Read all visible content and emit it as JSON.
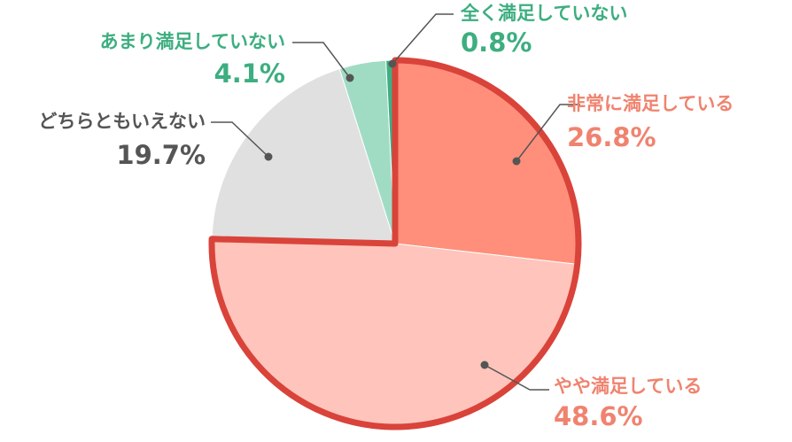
{
  "chart_data": {
    "type": "pie",
    "categories": [
      "非常に満足している",
      "やや満足している",
      "どちらともいえない",
      "あまり満足していない",
      "全く満足していない"
    ],
    "values": [
      26.8,
      48.6,
      19.7,
      4.1,
      0.8
    ],
    "value_labels": [
      "26.8%",
      "48.6%",
      "19.7%",
      "4.1%",
      "0.8%"
    ],
    "colors": [
      "#ff8f7a",
      "#ffc4bb",
      "#e0e0e0",
      "#a0dcc4",
      "#3dae80"
    ],
    "label_colors": [
      "#f0836f",
      "#f0836f",
      "#555555",
      "#3dae80",
      "#3dae80"
    ],
    "highlight_color": "#d9433a"
  }
}
